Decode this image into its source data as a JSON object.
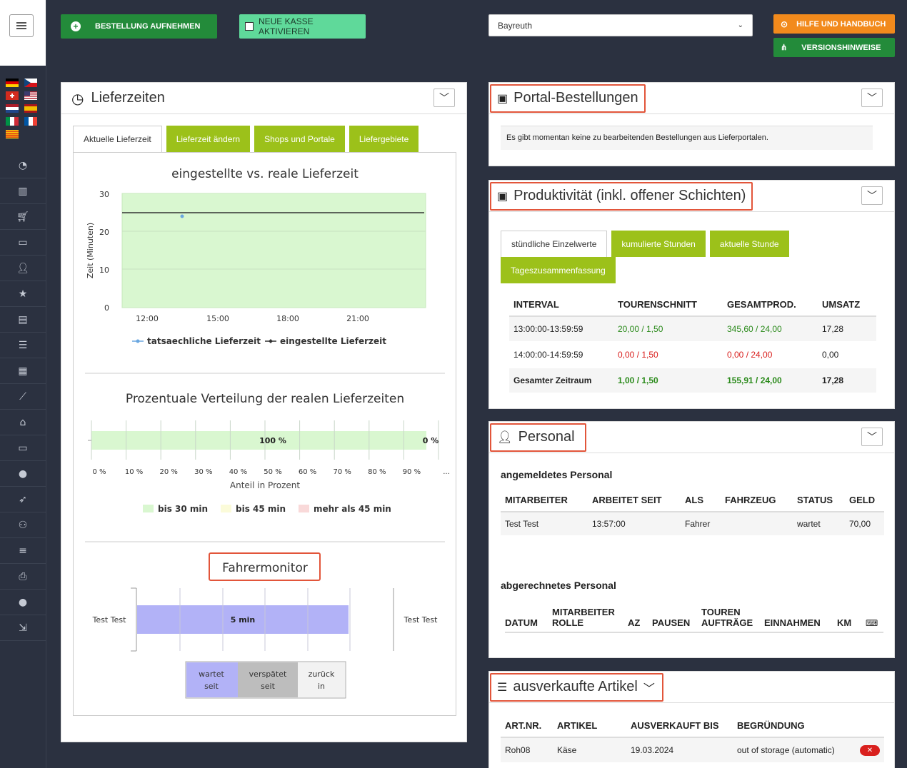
{
  "toolbar": {
    "order_btn": "BESTELLUNG AUFNEHMEN",
    "new_register_btn": "NEUE KASSE AKTIVIEREN",
    "location_select": "Bayreuth",
    "help_btn": "HILFE UND HANDBUCH",
    "version_btn": "VERSIONSHINWEISE"
  },
  "sidebar": {
    "flags": [
      "de",
      "cz",
      "ch",
      "us",
      "nl",
      "es",
      "it",
      "fr",
      "ca"
    ],
    "icons": [
      "dashboard-icon",
      "bar-chart-icon",
      "cart-icon",
      "monitor-icon",
      "add-user-icon",
      "star-icon",
      "archive-icon",
      "list-icon",
      "book-icon",
      "trend-icon",
      "home-icon",
      "screen-icon",
      "user-icon",
      "rocket-icon",
      "users-icon",
      "database-icon",
      "printer-icon",
      "person-icon",
      "logout-icon"
    ]
  },
  "lieferzeiten": {
    "title": "Lieferzeiten",
    "tabs": [
      "Aktuelle Lieferzeit",
      "Lieferzeit ändern",
      "Shops und Portale",
      "Liefergebiete"
    ],
    "chart1": {
      "title": "eingestellte vs. reale Lieferzeit",
      "ylabel": "Zeit (Minuten)",
      "yticks": [
        "30",
        "20",
        "10",
        "0"
      ],
      "xticks": [
        "12:00",
        "15:00",
        "18:00",
        "21:00"
      ],
      "legend": [
        "tatsaechliche Lieferzeit",
        "eingestellte Lieferzeit"
      ]
    },
    "chart2": {
      "title": "Prozentuale Verteilung der realen Lieferzeiten",
      "xlabel": "Anteil in Prozent",
      "xticks": [
        "0 %",
        "10 %",
        "20 %",
        "30 %",
        "40 %",
        "50 %",
        "60 %",
        "70 %",
        "80 %",
        "90 %",
        "..."
      ],
      "bar_label": "100 %",
      "end_label": "0 %",
      "legend": [
        "bis 30 min",
        "bis 45 min",
        "mehr als 45 min"
      ]
    },
    "fahrermonitor": {
      "title": "Fahrermonitor",
      "driver_left": "Test Test",
      "driver_right": "Test Test",
      "bar_label": "5 min",
      "legend": [
        "wartet seit",
        "verspätet seit",
        "zurück in"
      ]
    }
  },
  "portal": {
    "title": "Portal-Bestellungen",
    "message": "Es gibt momentan keine zu bearbeitenden Bestellungen aus Lieferportalen."
  },
  "produktivitaet": {
    "title": "Produktivität (inkl. offener Schichten)",
    "tabs": [
      "stündliche Einzelwerte",
      "kumulierte Stunden",
      "aktuelle Stunde",
      "Tageszusammenfassung"
    ],
    "columns": [
      "INTERVAL",
      "TOURENSCHNITT",
      "GESAMTPROD.",
      "UMSATZ"
    ],
    "rows": [
      {
        "interval": "13:00:00-13:59:59",
        "touren": "20,00 / 1,50",
        "gesamt": "345,60 / 24,00",
        "umsatz": "17,28"
      },
      {
        "interval": "14:00:00-14:59:59",
        "touren": "0,00 / 1,50",
        "gesamt": "0,00 / 24,00",
        "umsatz": "0,00"
      },
      {
        "interval": "Gesamter Zeitraum",
        "touren": "1,00 / 1,50",
        "gesamt": "155,91 / 24,00",
        "umsatz": "17,28"
      }
    ]
  },
  "personal": {
    "title": "Personal",
    "logged_in_heading": "angemeldetes Personal",
    "logged_columns": [
      "MITARBEITER",
      "ARBEITET SEIT",
      "ALS",
      "FAHRZEUG",
      "STATUS",
      "GELD"
    ],
    "logged_rows": [
      {
        "name": "Test Test",
        "seit": "13:57:00",
        "als": "Fahrer",
        "fahrzeug": "",
        "status": "wartet",
        "geld": "70,00"
      }
    ],
    "billed_heading": "abgerechnetes Personal",
    "billed_columns": [
      "DATUM",
      "MITARBEITER",
      "ROLLE",
      "AZ",
      "PAUSEN",
      "TOUREN",
      "AUFTRÄGE",
      "EINNAHMEN",
      "KM"
    ]
  },
  "ausverkauft": {
    "title": "ausverkaufte Artikel",
    "columns": [
      "ART.NR.",
      "ARTIKEL",
      "AUSVERKAUFT BIS",
      "BEGRÜNDUNG"
    ],
    "rows": [
      {
        "artnr": "Roh08",
        "artikel": "Käse",
        "bis": "19.03.2024",
        "grund": "out of storage (automatic)"
      }
    ]
  },
  "chart_data": [
    {
      "type": "line",
      "title": "eingestellte vs. reale Lieferzeit",
      "xlabel": "",
      "ylabel": "Zeit (Minuten)",
      "ylim": [
        0,
        30
      ],
      "x": [
        "12:00",
        "15:00",
        "18:00",
        "21:00"
      ],
      "series": [
        {
          "name": "tatsaechliche Lieferzeit",
          "points": [
            {
              "x": "13:30",
              "y": 24
            }
          ]
        },
        {
          "name": "eingestellte Lieferzeit",
          "points": [
            {
              "x": "11:30",
              "y": 25
            },
            {
              "x": "23:30",
              "y": 25
            }
          ]
        }
      ]
    },
    {
      "type": "bar",
      "title": "Prozentuale Verteilung der realen Lieferzeiten",
      "xlabel": "Anteil in Prozent",
      "series": [
        {
          "name": "bis 30 min",
          "values": [
            100
          ]
        },
        {
          "name": "bis 45 min",
          "values": [
            0
          ]
        },
        {
          "name": "mehr als 45 min",
          "values": [
            0
          ]
        }
      ]
    }
  ]
}
